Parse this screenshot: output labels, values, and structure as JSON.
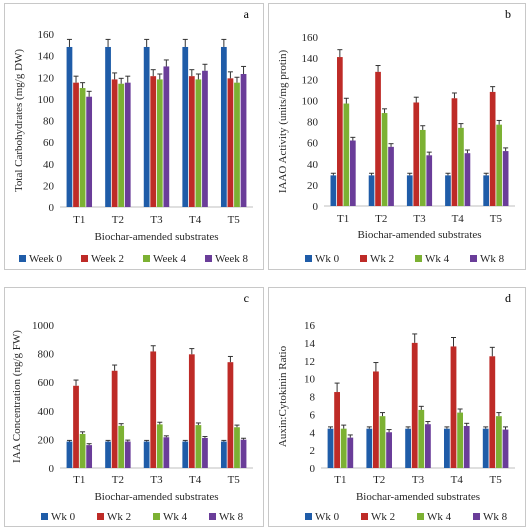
{
  "colors": {
    "s0": "#1f5ca8",
    "s1": "#be2b27",
    "s2": "#7cb133",
    "s3": "#6a3d99",
    "axis": "#bfbfbf",
    "error": "#333333"
  },
  "chart_data": [
    {
      "type": "bar",
      "panel_letter": "a",
      "categories": [
        "T1",
        "T2",
        "T3",
        "T4",
        "T5"
      ],
      "xlabel": "Biochar-amended substrates",
      "ylabel": "Total Carbohydrates (mg/g DW)",
      "ylim": [
        0,
        160
      ],
      "yticks": [
        0,
        20,
        40,
        60,
        80,
        100,
        120,
        140,
        160
      ],
      "series": [
        {
          "name": "Week 0",
          "values": [
            148,
            148,
            148,
            148,
            148
          ],
          "errors": [
            7,
            7,
            7,
            7,
            7
          ]
        },
        {
          "name": "Week 2",
          "values": [
            115,
            118,
            121,
            121,
            119
          ],
          "errors": [
            6,
            6,
            6,
            6,
            6
          ]
        },
        {
          "name": "Week 4",
          "values": [
            110,
            114,
            118,
            118,
            115
          ],
          "errors": [
            5,
            5,
            5,
            5,
            5
          ]
        },
        {
          "name": "Week 8",
          "values": [
            102,
            115,
            130,
            126,
            123
          ],
          "errors": [
            5,
            6,
            6,
            6,
            7
          ]
        }
      ],
      "legend_position": "bottom"
    },
    {
      "type": "bar",
      "panel_letter": "b",
      "categories": [
        "T1",
        "T2",
        "T3",
        "T4",
        "T5"
      ],
      "xlabel": "Biochar-amended substrates",
      "ylabel": "IAAO Activity (units/mg protin)",
      "ylim": [
        0,
        160
      ],
      "yticks": [
        0,
        20,
        40,
        60,
        80,
        100,
        120,
        140,
        160
      ],
      "series": [
        {
          "name": "Wk 0",
          "values": [
            29,
            29,
            29,
            29,
            29
          ],
          "errors": [
            2,
            2,
            2,
            2,
            2
          ]
        },
        {
          "name": "Wk 2",
          "values": [
            141,
            127,
            98,
            102,
            108
          ],
          "errors": [
            7,
            6,
            5,
            5,
            5
          ]
        },
        {
          "name": "Wk 4",
          "values": [
            97,
            88,
            72,
            74,
            77
          ],
          "errors": [
            5,
            4,
            4,
            4,
            4
          ]
        },
        {
          "name": "Wk 8",
          "values": [
            62,
            56,
            48,
            50,
            52
          ],
          "errors": [
            3,
            3,
            3,
            3,
            3
          ]
        }
      ],
      "legend_position": "bottom"
    },
    {
      "type": "bar",
      "panel_letter": "c",
      "categories": [
        "T1",
        "T2",
        "T3",
        "T4",
        "T5"
      ],
      "xlabel": "Biochar-amended substrates",
      "ylabel": "IAA Concentration (ng/g FW)",
      "ylim": [
        0,
        1000
      ],
      "yticks": [
        0,
        200,
        400,
        600,
        800,
        1000
      ],
      "series": [
        {
          "name": "Wk 0",
          "values": [
            185,
            185,
            185,
            185,
            185
          ],
          "errors": [
            8,
            8,
            8,
            8,
            8
          ]
        },
        {
          "name": "Wk 2",
          "values": [
            575,
            680,
            815,
            795,
            740
          ],
          "errors": [
            40,
            40,
            40,
            40,
            40
          ]
        },
        {
          "name": "Wk 4",
          "values": [
            238,
            295,
            305,
            300,
            285
          ],
          "errors": [
            15,
            15,
            15,
            15,
            15
          ]
        },
        {
          "name": "Wk 8",
          "values": [
            160,
            185,
            215,
            210,
            198
          ],
          "errors": [
            10,
            10,
            10,
            10,
            10
          ]
        }
      ],
      "legend_position": "bottom"
    },
    {
      "type": "bar",
      "panel_letter": "d",
      "categories": [
        "T1",
        "T2",
        "T3",
        "T4",
        "T5"
      ],
      "xlabel": "Biochar-amended substrates",
      "ylabel": "Auxin:Cytokinin Ratio",
      "ylim": [
        0,
        16
      ],
      "yticks": [
        0,
        2,
        4,
        6,
        8,
        10,
        12,
        14,
        16
      ],
      "series": [
        {
          "name": "Wk 0",
          "values": [
            4.4,
            4.4,
            4.4,
            4.4,
            4.4
          ],
          "errors": [
            0.2,
            0.2,
            0.2,
            0.2,
            0.2
          ]
        },
        {
          "name": "Wk 2",
          "values": [
            8.5,
            10.8,
            14.0,
            13.6,
            12.5
          ],
          "errors": [
            1.0,
            1.0,
            1.0,
            1.0,
            1.0
          ]
        },
        {
          "name": "Wk 4",
          "values": [
            4.4,
            5.8,
            6.5,
            6.2,
            5.8
          ],
          "errors": [
            0.4,
            0.4,
            0.4,
            0.4,
            0.4
          ]
        },
        {
          "name": "Wk 8",
          "values": [
            3.4,
            4.0,
            4.9,
            4.7,
            4.3
          ],
          "errors": [
            0.3,
            0.3,
            0.3,
            0.3,
            0.3
          ]
        }
      ],
      "legend_position": "bottom"
    }
  ]
}
